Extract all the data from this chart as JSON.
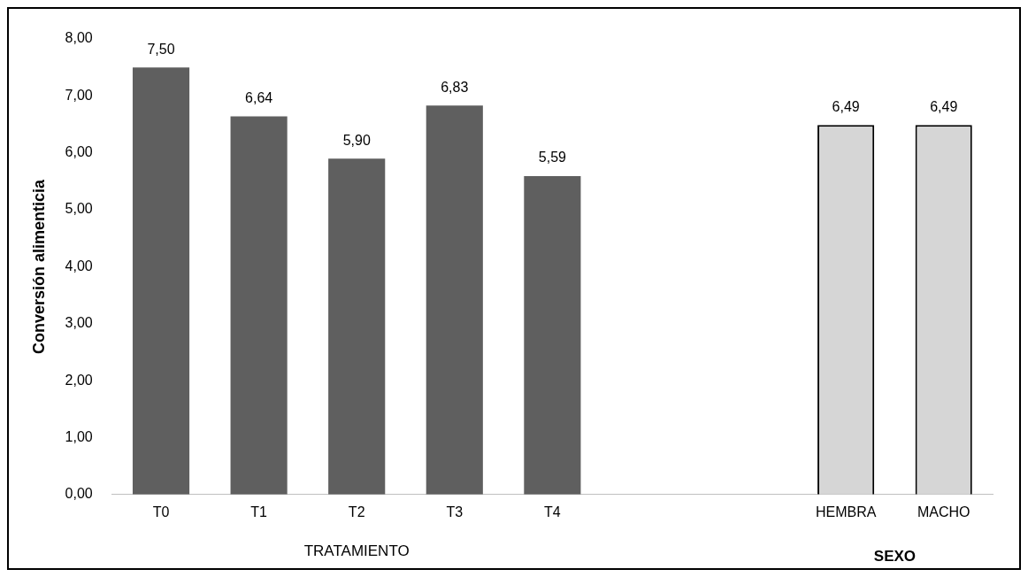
{
  "chart_data": {
    "type": "bar",
    "ylabel": "Conversión alimenticia",
    "categories": [
      "T0",
      "T1",
      "T2",
      "T3",
      "T4",
      null,
      null,
      "HEMBRA",
      "MACHO"
    ],
    "values": [
      7.5,
      6.64,
      5.9,
      6.83,
      5.59,
      null,
      null,
      6.49,
      6.49
    ],
    "colors": [
      "#5f5f5f",
      "#5f5f5f",
      "#5f5f5f",
      "#5f5f5f",
      "#5f5f5f",
      null,
      null,
      "#d6d6d6",
      "#d6d6d6"
    ],
    "value_labels": [
      "7,50",
      "6,64",
      "5,90",
      "6,83",
      "5,59",
      null,
      null,
      "6,49",
      "6,49"
    ],
    "ylim": [
      0,
      8
    ],
    "yticks": [
      {
        "value": 0,
        "label": "0,00"
      },
      {
        "value": 1,
        "label": "1,00"
      },
      {
        "value": 2,
        "label": "2,00"
      },
      {
        "value": 3,
        "label": "3,00"
      },
      {
        "value": 4,
        "label": "4,00"
      },
      {
        "value": 5,
        "label": "5,00"
      },
      {
        "value": 6,
        "label": "6,00"
      },
      {
        "value": 7,
        "label": "7,00"
      },
      {
        "value": 8,
        "label": "8,00"
      }
    ],
    "annotations": [
      "TRATAMIENTO",
      "SEXO"
    ],
    "grid": false,
    "legend": false
  }
}
